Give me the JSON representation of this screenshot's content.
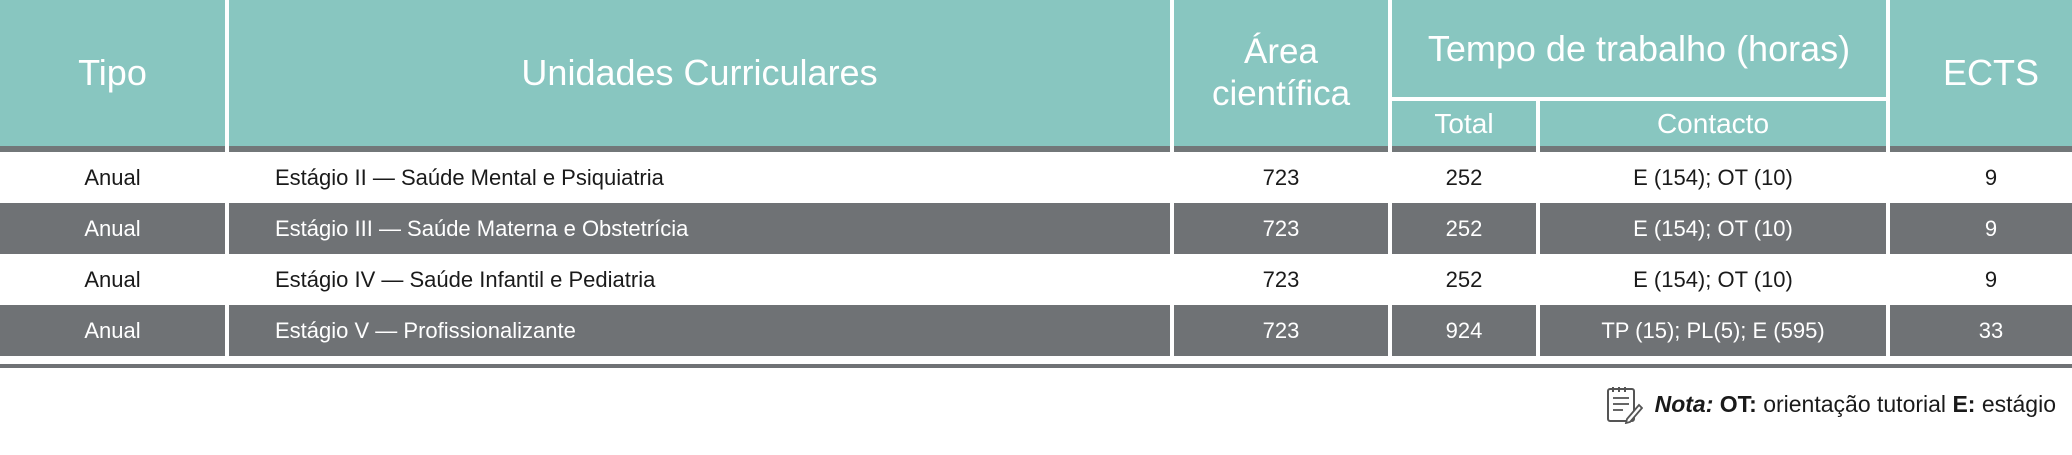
{
  "header": {
    "tipo": "Tipo",
    "unidades": "Unidades Curriculares",
    "area_line1": "Área",
    "area_line2": "científica",
    "tempo": "Tempo de trabalho (horas)",
    "total": "Total",
    "contacto": "Contacto",
    "ects": "ECTS"
  },
  "rows": [
    {
      "tipo": "Anual",
      "uc": "Estágio II — Saúde Mental e Psiquiatria",
      "area": "723",
      "total": "252",
      "contacto": "E (154); OT (10)",
      "ects": "9"
    },
    {
      "tipo": "Anual",
      "uc": "Estágio III — Saúde Materna e Obstetrícia",
      "area": "723",
      "total": "252",
      "contacto": "E (154); OT (10)",
      "ects": "9"
    },
    {
      "tipo": "Anual",
      "uc": "Estágio IV — Saúde Infantil e Pediatria",
      "area": "723",
      "total": "252",
      "contacto": "E (154); OT (10)",
      "ects": "9"
    },
    {
      "tipo": "Anual",
      "uc": "Estágio V — Profissionalizante",
      "area": "723",
      "total": "924",
      "contacto": "TP (15); PL(5); E (595)",
      "ects": "33"
    }
  ],
  "note": {
    "icon": "notepad-pencil-icon",
    "label": "Nota:",
    "ot_abbr": "OT:",
    "ot_text": "orientação tutorial",
    "e_abbr": "E:",
    "e_text": "estágio"
  },
  "colors": {
    "header_teal": "#88c6c0",
    "row_gray": "#6f7275",
    "divider_gray": "#727779"
  }
}
